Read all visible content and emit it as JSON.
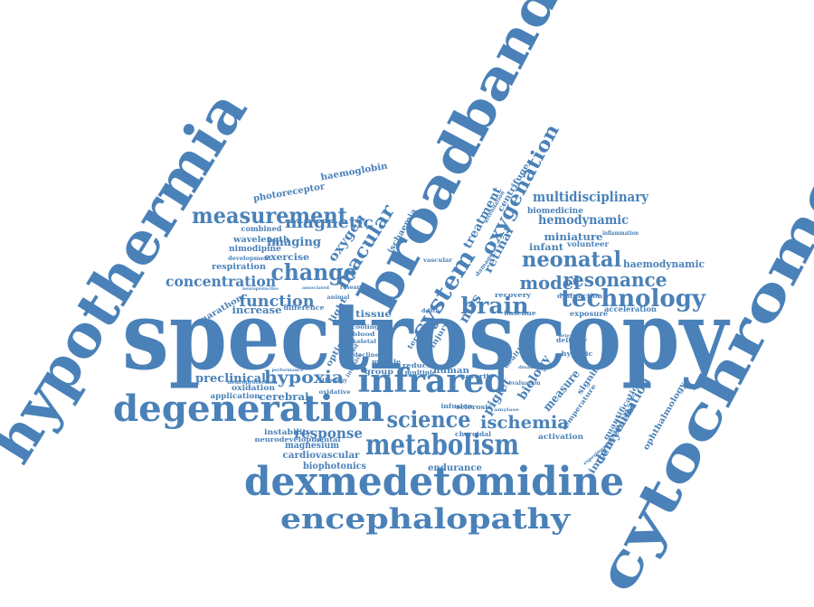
{
  "color": "#4a81b8",
  "words": [
    {
      "text": "spectroscopy",
      "weight": 100
    },
    {
      "text": "hypothermia",
      "weight": 70
    },
    {
      "text": "broadband",
      "weight": 66
    },
    {
      "text": "cytochrome",
      "weight": 64
    },
    {
      "text": "dexmedetomidine",
      "weight": 48
    },
    {
      "text": "degeneration",
      "weight": 42
    },
    {
      "text": "infrared",
      "weight": 38
    },
    {
      "text": "metabolism",
      "weight": 34
    },
    {
      "text": "encephalopathy",
      "weight": 33
    },
    {
      "text": "technology",
      "weight": 28
    },
    {
      "text": "science",
      "weight": 27
    },
    {
      "text": "brain",
      "weight": 27
    },
    {
      "text": "system",
      "weight": 27
    },
    {
      "text": "change",
      "weight": 26
    },
    {
      "text": "measurement",
      "weight": 25
    },
    {
      "text": "neonatal",
      "weight": 24
    },
    {
      "text": "resonance",
      "weight": 22
    },
    {
      "text": "macular",
      "weight": 22
    },
    {
      "text": "oxygenation",
      "weight": 22
    },
    {
      "text": "model",
      "weight": 21
    },
    {
      "text": "hypoxia",
      "weight": 20
    },
    {
      "text": "ischemia",
      "weight": 20
    },
    {
      "text": "magnetic",
      "weight": 19
    },
    {
      "text": "function",
      "weight": 18
    },
    {
      "text": "concentration",
      "weight": 17
    },
    {
      "text": "response",
      "weight": 17
    },
    {
      "text": "multidisciplinary",
      "weight": 16
    },
    {
      "text": "hemodynamic",
      "weight": 15
    },
    {
      "text": "demyelination",
      "weight": 15
    },
    {
      "text": "nirs",
      "weight": 15
    },
    {
      "text": "oxygen",
      "weight": 15
    },
    {
      "text": "imaging",
      "weight": 14
    },
    {
      "text": "preclinical",
      "weight": 14
    },
    {
      "text": "piglet",
      "weight": 14
    },
    {
      "text": "treatment",
      "weight": 14
    },
    {
      "text": "retinal",
      "weight": 14
    },
    {
      "text": "biology",
      "weight": 13
    },
    {
      "text": "measure",
      "weight": 13
    },
    {
      "text": "miniature",
      "weight": 12
    },
    {
      "text": "haemodynamic",
      "weight": 12
    },
    {
      "text": "increase",
      "weight": 12
    },
    {
      "text": "cerebral",
      "weight": 12
    },
    {
      "text": "improvement",
      "weight": 11
    },
    {
      "text": "endurance",
      "weight": 11
    },
    {
      "text": "biophotonics",
      "weight": 11
    },
    {
      "text": "cardiovascular",
      "weight": 11
    },
    {
      "text": "magnesium",
      "weight": 11
    },
    {
      "text": "photoreceptor",
      "weight": 11
    },
    {
      "text": "haemoglobin",
      "weight": 11
    },
    {
      "text": "infant",
      "weight": 11
    },
    {
      "text": "tissue",
      "weight": 11
    },
    {
      "text": "exercise",
      "weight": 11
    },
    {
      "text": "respiration",
      "weight": 10
    },
    {
      "text": "biomedicine",
      "weight": 10
    },
    {
      "text": "wavelength",
      "weight": 10
    },
    {
      "text": "nimodipine",
      "weight": 10
    },
    {
      "text": "significant",
      "weight": 10
    },
    {
      "text": "ophthalmology",
      "weight": 10
    },
    {
      "text": "marathon",
      "weight": 10
    },
    {
      "text": "ischaemia",
      "weight": 10
    },
    {
      "text": "centrifuge",
      "weight": 10
    },
    {
      "text": "optical",
      "weight": 10
    },
    {
      "text": "light",
      "weight": 10
    },
    {
      "text": "volunteer",
      "weight": 9
    },
    {
      "text": "combined",
      "weight": 9
    },
    {
      "text": "application",
      "weight": 9
    },
    {
      "text": "oxidation",
      "weight": 9
    },
    {
      "text": "instability",
      "weight": 9
    },
    {
      "text": "neurodevelopmental",
      "weight": 8
    },
    {
      "text": "quantification",
      "weight": 9
    },
    {
      "text": "activation",
      "weight": 9
    },
    {
      "text": "temperature",
      "weight": 8
    },
    {
      "text": "exposure",
      "weight": 8
    },
    {
      "text": "acceleration",
      "weight": 8
    },
    {
      "text": "dysfunction",
      "weight": 8
    },
    {
      "text": "recovery",
      "weight": 8
    },
    {
      "text": "baseline",
      "weight": 8
    },
    {
      "text": "delivery",
      "weight": 8
    },
    {
      "text": "hypoxic",
      "weight": 8
    },
    {
      "text": "healthy",
      "weight": 8
    },
    {
      "text": "sclerosis",
      "weight": 8
    },
    {
      "text": "choroidal",
      "weight": 8
    },
    {
      "text": "severity",
      "weight": 8
    },
    {
      "text": "human",
      "weight": 9
    },
    {
      "text": "group",
      "weight": 8
    },
    {
      "text": "reduce",
      "weight": 8
    },
    {
      "text": "multiple",
      "weight": 8
    },
    {
      "text": "infusion",
      "weight": 8
    },
    {
      "text": "muscle",
      "weight": 8
    },
    {
      "text": "skeletal",
      "weight": 7
    },
    {
      "text": "induced",
      "weight": 7
    },
    {
      "text": "decline",
      "weight": 7
    },
    {
      "text": "blood",
      "weight": 7
    },
    {
      "text": "cooling",
      "weight": 7
    },
    {
      "text": "difference",
      "weight": 8
    },
    {
      "text": "therapy",
      "weight": 7
    },
    {
      "text": "oxidative",
      "weight": 7
    },
    {
      "text": "vascular",
      "weight": 7
    },
    {
      "text": "animal",
      "weight": 7
    },
    {
      "text": "invasive",
      "weight": 7
    },
    {
      "text": "injury",
      "weight": 8
    },
    {
      "text": "state",
      "weight": 8
    },
    {
      "text": "term",
      "weight": 8
    },
    {
      "text": "development",
      "weight": 6
    },
    {
      "text": "neuroprotection",
      "weight": 6
    },
    {
      "text": "inflammation",
      "weight": 6
    },
    {
      "text": "attenuation",
      "weight": 6
    },
    {
      "text": "damage",
      "weight": 6
    },
    {
      "text": "death",
      "weight": 6
    },
    {
      "text": "research",
      "weight": 6
    },
    {
      "text": "evaluation",
      "weight": 5
    },
    {
      "text": "disability",
      "weight": 5
    },
    {
      "text": "experimental",
      "weight": 5
    },
    {
      "text": "detected",
      "weight": 5
    },
    {
      "text": "amylase",
      "weight": 5
    },
    {
      "text": "hyperperfusion",
      "weight": 5
    },
    {
      "text": "performance",
      "weight": 5
    },
    {
      "text": "associated",
      "weight": 5
    },
    {
      "text": "neuroprotective",
      "weight": 5
    }
  ]
}
